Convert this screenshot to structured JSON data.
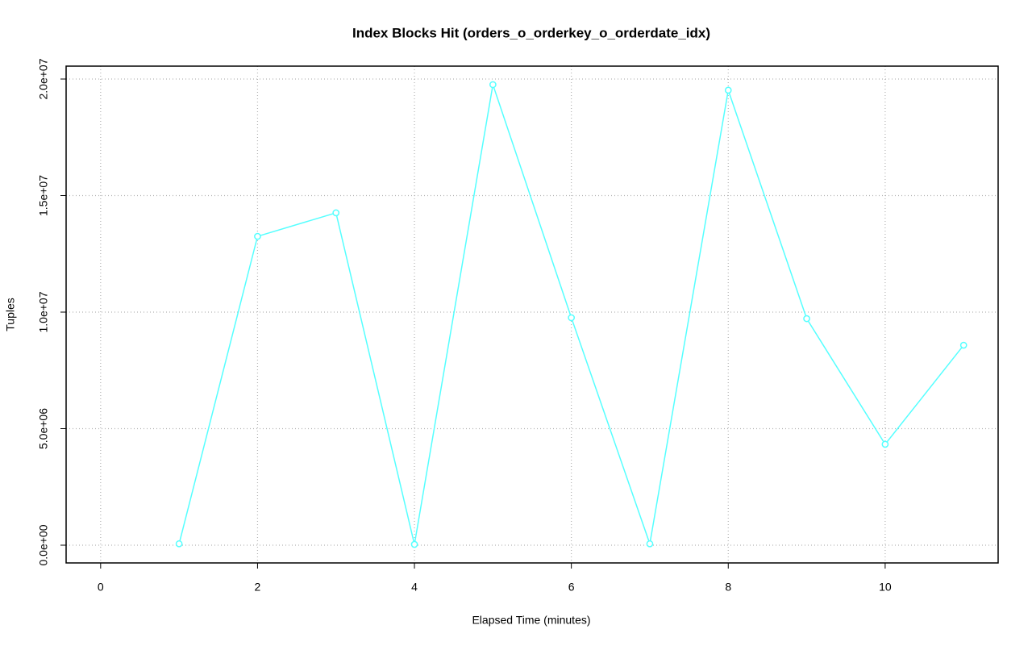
{
  "chart_data": {
    "type": "line",
    "title": "Index Blocks Hit (orders_o_orderkey_o_orderdate_idx)",
    "x_label": "Elapsed Time (minutes)",
    "y_label": "Tuples",
    "x": [
      1,
      2,
      3,
      4,
      5,
      6,
      7,
      8,
      9,
      10,
      11
    ],
    "series": [
      {
        "color": "#55ffff",
        "values": [
          60000,
          13250000,
          14260000,
          35000,
          19760000,
          9760000,
          60000,
          19520000,
          9720000,
          4330000,
          8580000
        ]
      }
    ],
    "xlim": [
      -0.44,
      11.44
    ],
    "xticks": [
      0,
      2,
      4,
      6,
      8,
      10
    ],
    "ylim": [
      -761000,
      20554000
    ],
    "yticks": [
      {
        "value": 0,
        "label": "0.0e+00"
      },
      {
        "value": 5000000,
        "label": "5.0e+06"
      },
      {
        "value": 10000000,
        "label": "1.0e+07"
      },
      {
        "value": 15000000,
        "label": "1.5e+07"
      },
      {
        "value": 20000000,
        "label": "2.0e+07"
      }
    ],
    "grid": true
  }
}
